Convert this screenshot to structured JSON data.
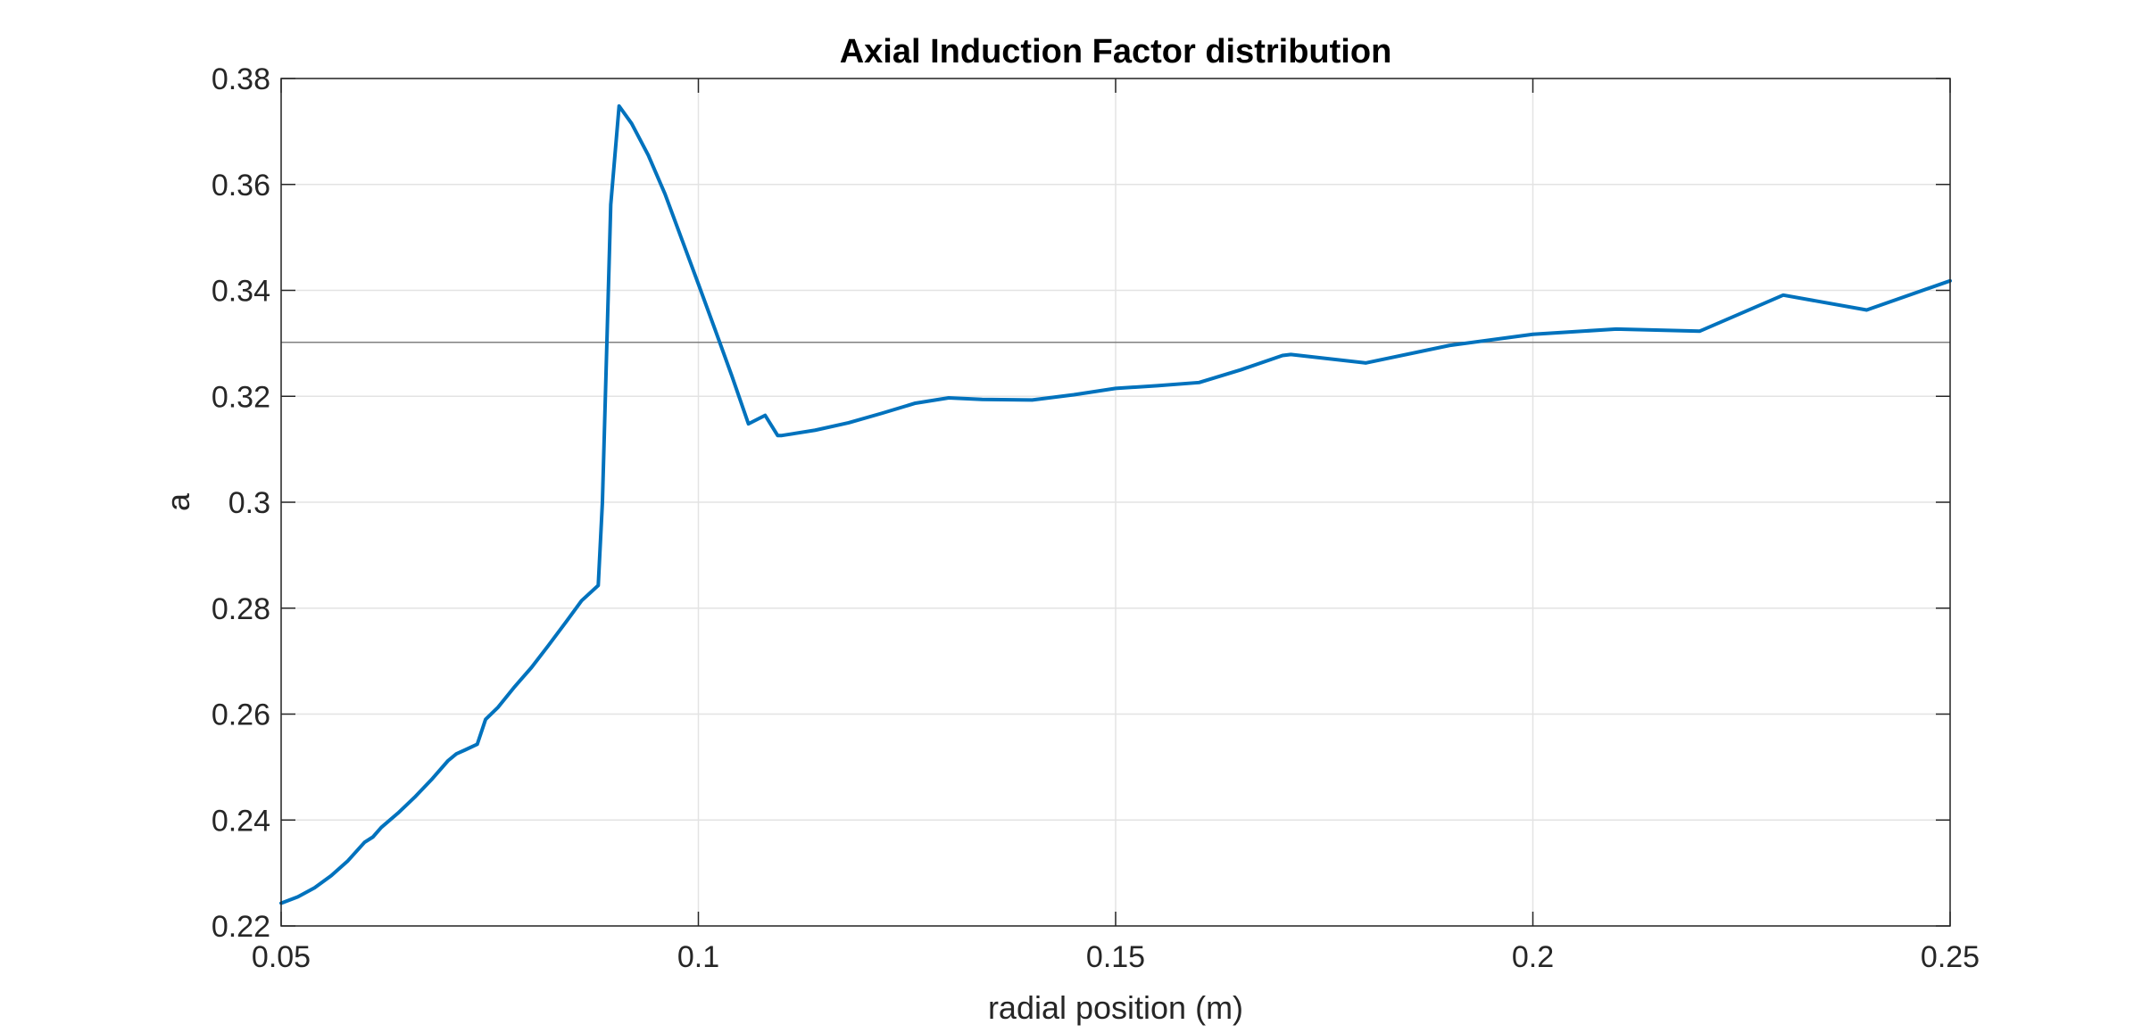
{
  "chart_data": {
    "type": "line",
    "title": "Axial Induction Factor distribution",
    "xlabel": "radial position (m)",
    "ylabel": "a",
    "xlim": [
      0.05,
      0.25
    ],
    "ylim": [
      0.22,
      0.38
    ],
    "xticks": [
      0.05,
      0.1,
      0.15,
      0.2,
      0.25
    ],
    "xtick_labels": [
      "0.05",
      "0.1",
      "0.15",
      "0.2",
      "0.25"
    ],
    "yticks": [
      0.22,
      0.24,
      0.26,
      0.28,
      0.3,
      0.32,
      0.34,
      0.36,
      0.38
    ],
    "ytick_labels": [
      "0.22",
      "0.24",
      "0.26",
      "0.28",
      "0.3",
      "0.32",
      "0.34",
      "0.36",
      "0.38"
    ],
    "grid": true,
    "reference_line": {
      "y": 0.3302,
      "color": "#808080"
    },
    "series": [
      {
        "color": "#0072BD",
        "x": [
          0.05,
          0.052,
          0.054,
          0.056,
          0.058,
          0.06,
          0.061,
          0.062,
          0.064,
          0.066,
          0.068,
          0.07,
          0.071,
          0.072,
          0.0735,
          0.0745,
          0.076,
          0.078,
          0.08,
          0.082,
          0.084,
          0.086,
          0.088,
          0.0885,
          0.0895,
          0.0905,
          0.092,
          0.094,
          0.096,
          0.098,
          0.1,
          0.102,
          0.104,
          0.106,
          0.108,
          0.1095,
          0.11,
          0.114,
          0.118,
          0.122,
          0.126,
          0.13,
          0.134,
          0.14,
          0.145,
          0.15,
          0.155,
          0.16,
          0.165,
          0.17,
          0.171,
          0.18,
          0.19,
          0.2,
          0.21,
          0.22,
          0.23,
          0.24,
          0.25
        ],
        "y": [
          0.2243,
          0.2255,
          0.2272,
          0.2295,
          0.2323,
          0.2358,
          0.2368,
          0.2386,
          0.2413,
          0.2443,
          0.2476,
          0.2512,
          0.2525,
          0.2532,
          0.2543,
          0.259,
          0.2613,
          0.2652,
          0.2688,
          0.2729,
          0.2771,
          0.2814,
          0.2843,
          0.3,
          0.3562,
          0.3748,
          0.3715,
          0.3655,
          0.3582,
          0.3497,
          0.3412,
          0.3326,
          0.3239,
          0.3148,
          0.3164,
          0.3126,
          0.3126,
          0.3136,
          0.315,
          0.3168,
          0.3187,
          0.3197,
          0.3194,
          0.3193,
          0.3203,
          0.3215,
          0.322,
          0.3226,
          0.325,
          0.3277,
          0.3279,
          0.3263,
          0.3296,
          0.3317,
          0.3327,
          0.3323,
          0.3391,
          0.3363,
          0.3418
        ]
      }
    ]
  }
}
